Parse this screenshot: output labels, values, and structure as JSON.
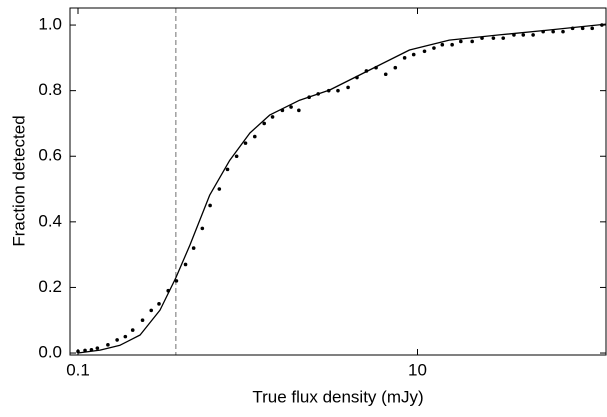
{
  "chart_data": {
    "type": "scatter",
    "xlabel": "True flux density (mJy)",
    "ylabel": "Fraction detected",
    "xscale": "log",
    "xlim": [
      0.0897,
      129
    ],
    "ylim": [
      -0.006,
      1.052
    ],
    "xticks": [
      0.1,
      10
    ],
    "yticks": [
      {
        "value": 0,
        "label": "0.0"
      },
      0.2,
      0.4,
      0.6,
      0.8,
      {
        "value": 1,
        "label": "1.0"
      }
    ],
    "vline": {
      "x": 0.377,
      "color": "#888888"
    },
    "series": [
      {
        "type": "scatter",
        "color": "#000000",
        "x": [
          0.1,
          0.11,
          0.12,
          0.13,
          0.15,
          0.17,
          0.19,
          0.21,
          0.24,
          0.27,
          0.3,
          0.34,
          0.38,
          0.43,
          0.48,
          0.54,
          0.6,
          0.68,
          0.76,
          0.86,
          0.97,
          1.1,
          1.25,
          1.4,
          1.6,
          1.8,
          2.0,
          2.3,
          2.6,
          3.0,
          3.4,
          3.9,
          4.4,
          5,
          5.7,
          6.5,
          7.4,
          8.4,
          9.5,
          11,
          12.5,
          14,
          16,
          18,
          21,
          24,
          28,
          32,
          37,
          42,
          48,
          55,
          63,
          72,
          82,
          94,
          107,
          122
        ],
        "values": [
          0.005,
          0.008,
          0.01,
          0.015,
          0.025,
          0.04,
          0.05,
          0.07,
          0.1,
          0.13,
          0.15,
          0.19,
          0.22,
          0.27,
          0.32,
          0.38,
          0.45,
          0.5,
          0.56,
          0.6,
          0.64,
          0.66,
          0.7,
          0.72,
          0.74,
          0.75,
          0.74,
          0.78,
          0.79,
          0.8,
          0.8,
          0.81,
          0.84,
          0.86,
          0.87,
          0.85,
          0.87,
          0.9,
          0.91,
          0.92,
          0.93,
          0.94,
          0.94,
          0.95,
          0.95,
          0.96,
          0.96,
          0.96,
          0.97,
          0.97,
          0.97,
          0.98,
          0.98,
          0.98,
          0.99,
          0.99,
          0.99,
          1.0
        ]
      },
      {
        "type": "line",
        "color": "#000000",
        "x": [
          0.1,
          0.135,
          0.177,
          0.232,
          0.304,
          0.377,
          0.456,
          0.598,
          0.784,
          1.03,
          1.35,
          2.02,
          3.04,
          5.22,
          8.97,
          15.4,
          30.3,
          59.7,
          129
        ],
        "values": [
          0,
          0.009,
          0.024,
          0.055,
          0.131,
          0.229,
          0.329,
          0.482,
          0.588,
          0.671,
          0.726,
          0.771,
          0.802,
          0.863,
          0.924,
          0.954,
          0.97,
          0.985,
          1.003
        ]
      }
    ]
  }
}
